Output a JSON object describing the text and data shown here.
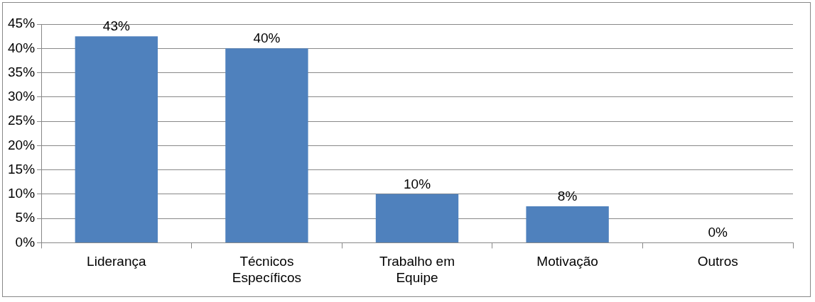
{
  "chart_data": {
    "type": "bar",
    "categories": [
      "Liderança",
      "Técnicos Específicos",
      "Trabalho em Equipe",
      "Motivação",
      "Outros"
    ],
    "values": [
      42.5,
      40,
      10,
      7.5,
      0
    ],
    "value_labels": [
      "43%",
      "40%",
      "10%",
      "8%",
      "0%"
    ],
    "color": "#4f81bd",
    "ylim": [
      0,
      45
    ],
    "yticks": [
      {
        "value": 0,
        "label": "0%"
      },
      {
        "value": 5,
        "label": "5%"
      },
      {
        "value": 10,
        "label": "10%"
      },
      {
        "value": 15,
        "label": "15%"
      },
      {
        "value": 20,
        "label": "20%"
      },
      {
        "value": 25,
        "label": "25%"
      },
      {
        "value": 30,
        "label": "30%"
      },
      {
        "value": 35,
        "label": "35%"
      },
      {
        "value": 40,
        "label": "40%"
      },
      {
        "value": 45,
        "label": "45%"
      }
    ],
    "grid": "y",
    "legend": false
  }
}
